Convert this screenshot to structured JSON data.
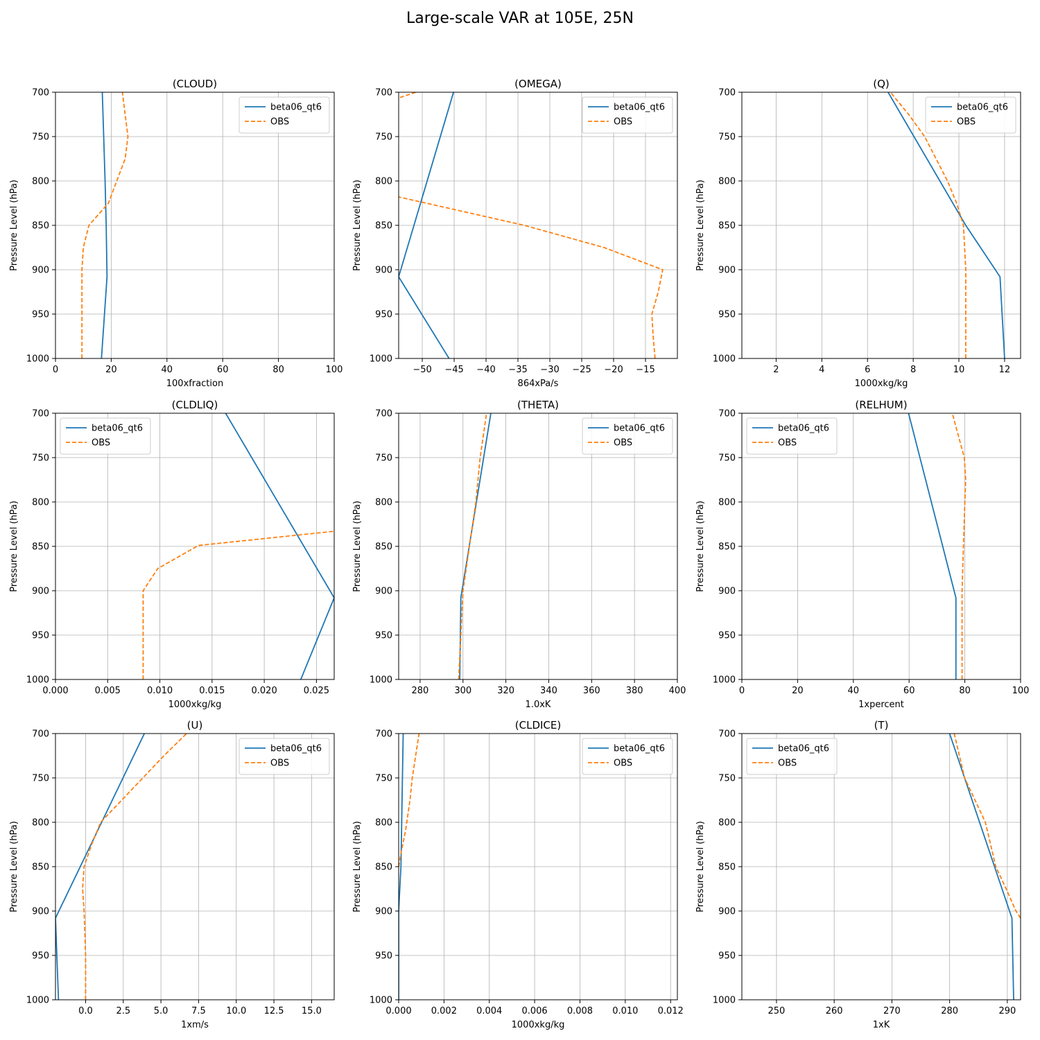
{
  "figure_title": "Large-scale VAR at 105E, 25N",
  "y_label": "Pressure Level (hPa)",
  "y_ticks": [
    700,
    750,
    800,
    850,
    900,
    950,
    1000
  ],
  "colors": {
    "model": "#1f77b4",
    "obs": "#ff7f0e",
    "grid": "#b0b0b0"
  },
  "legend_labels": [
    "beta06_qt6",
    "OBS"
  ],
  "chart_data": [
    {
      "type": "line",
      "title": "(CLOUD)",
      "xlabel": "100xfraction",
      "xlim": [
        0,
        100
      ],
      "ylim": [
        1000,
        700
      ],
      "y_inverted": true,
      "xticks": [
        0,
        20,
        40,
        60,
        80,
        100
      ],
      "xtick_labels": [
        "0",
        "20",
        "40",
        "60",
        "80",
        "100"
      ],
      "legend_position": "upper-right",
      "grid": true,
      "series": [
        {
          "name": "beta06_qt6",
          "style": "solid",
          "color": "#1f77b4",
          "x": [
            16.5,
            18.5,
            18.2,
            17.8,
            17.3,
            16.8
          ],
          "y": [
            1000,
            908,
            850,
            800,
            750,
            700
          ]
        },
        {
          "name": "OBS",
          "style": "dashed",
          "color": "#ff7f0e",
          "x": [
            9.5,
            9.5,
            10,
            12,
            19,
            22,
            25,
            26,
            24
          ],
          "y": [
            1000,
            900,
            875,
            850,
            825,
            800,
            775,
            750,
            700
          ]
        }
      ]
    },
    {
      "type": "line",
      "title": "(OMEGA)",
      "xlabel": "864xPa/s",
      "xlim": [
        -53.7,
        -10
      ],
      "ylim": [
        1000,
        700
      ],
      "y_inverted": true,
      "xticks": [
        -50,
        -45,
        -40,
        -35,
        -30,
        -25,
        -20,
        -15
      ],
      "xtick_labels": [
        "−50",
        "−45",
        "−40",
        "−35",
        "−30",
        "−25",
        "−20",
        "−15"
      ],
      "legend_position": "upper-right",
      "grid": true,
      "series": [
        {
          "name": "beta06_qt6",
          "style": "solid",
          "color": "#1f77b4",
          "x": [
            -45.8,
            -53.7,
            -45.1
          ],
          "y": [
            1000,
            908,
            700
          ]
        },
        {
          "name": "OBS",
          "style": "dashed",
          "color": "#ff7f0e",
          "x": [
            -13.5,
            -13.8,
            -14.0,
            -13.0,
            -12.3,
            -21.5,
            -34.0,
            -53.7,
            null,
            -53.5,
            -51.0
          ],
          "y": [
            1000,
            975,
            950,
            925,
            900,
            875,
            850,
            818,
            null,
            706,
            700
          ]
        }
      ]
    },
    {
      "type": "line",
      "title": "(Q)",
      "xlabel": "1000xkg/kg",
      "xlim": [
        0.5,
        12.7
      ],
      "ylim": [
        1000,
        700
      ],
      "y_inverted": true,
      "xticks": [
        2,
        4,
        6,
        8,
        10,
        12
      ],
      "xtick_labels": [
        "2",
        "4",
        "6",
        "8",
        "10",
        "12"
      ],
      "legend_position": "upper-right",
      "grid": true,
      "series": [
        {
          "name": "beta06_qt6",
          "style": "solid",
          "color": "#1f77b4",
          "x": [
            12.0,
            11.8,
            10.3,
            6.9
          ],
          "y": [
            1000,
            908,
            850,
            700
          ]
        },
        {
          "name": "OBS",
          "style": "dashed",
          "color": "#ff7f0e",
          "x": [
            10.3,
            10.3,
            10.2,
            9.9,
            9.5,
            9.0,
            8.5,
            7.8,
            7.0
          ],
          "y": [
            1000,
            900,
            850,
            825,
            800,
            775,
            750,
            725,
            700
          ]
        }
      ]
    },
    {
      "type": "line",
      "title": "(CLDLIQ)",
      "xlabel": "1000xkg/kg",
      "xlim": [
        0,
        0.0267
      ],
      "ylim": [
        1000,
        700
      ],
      "y_inverted": true,
      "xticks": [
        0,
        0.005,
        0.01,
        0.015,
        0.02,
        0.025
      ],
      "xtick_labels": [
        "0.000",
        "0.005",
        "0.010",
        "0.015",
        "0.020",
        "0.025"
      ],
      "legend_position": "upper-left",
      "grid": true,
      "series": [
        {
          "name": "beta06_qt6",
          "style": "solid",
          "color": "#1f77b4",
          "x": [
            0.0235,
            0.0267,
            0.0163
          ],
          "y": [
            1000,
            908,
            700
          ]
        },
        {
          "name": "OBS",
          "style": "dashed",
          "color": "#ff7f0e",
          "x": [
            0.0084,
            0.0084,
            0.0098,
            0.0137,
            0.0267
          ],
          "y": [
            1000,
            900,
            875,
            849,
            833
          ]
        }
      ]
    },
    {
      "type": "line",
      "title": "(THETA)",
      "xlabel": "1.0xK",
      "xlim": [
        270,
        400
      ],
      "ylim": [
        1000,
        700
      ],
      "y_inverted": true,
      "xticks": [
        280,
        300,
        320,
        340,
        360,
        380,
        400
      ],
      "xtick_labels": [
        "280",
        "300",
        "320",
        "340",
        "360",
        "380",
        "400"
      ],
      "legend_position": "upper-right",
      "grid": true,
      "series": [
        {
          "name": "beta06_qt6",
          "style": "solid",
          "color": "#1f77b4",
          "x": [
            298.5,
            299,
            313
          ],
          "y": [
            1000,
            908,
            700
          ]
        },
        {
          "name": "OBS",
          "style": "dashed",
          "color": "#ff7f0e",
          "x": [
            298,
            299,
            300,
            303,
            306,
            308,
            311
          ],
          "y": [
            1000,
            950,
            900,
            850,
            800,
            750,
            700
          ]
        }
      ]
    },
    {
      "type": "line",
      "title": "(RELHUM)",
      "xlabel": "1xpercent",
      "xlim": [
        0,
        100
      ],
      "ylim": [
        1000,
        700
      ],
      "y_inverted": true,
      "xticks": [
        0,
        20,
        40,
        60,
        80,
        100
      ],
      "xtick_labels": [
        "0",
        "20",
        "40",
        "60",
        "80",
        "100"
      ],
      "legend_position": "upper-left",
      "grid": true,
      "series": [
        {
          "name": "beta06_qt6",
          "style": "solid",
          "color": "#1f77b4",
          "x": [
            76.8,
            76.8,
            59.8
          ],
          "y": [
            1000,
            908,
            700
          ]
        },
        {
          "name": "OBS",
          "style": "dashed",
          "color": "#ff7f0e",
          "x": [
            79,
            79,
            79.5,
            80,
            80.3,
            79.8,
            75.5
          ],
          "y": [
            1000,
            900,
            850,
            800,
            775,
            750,
            700
          ]
        }
      ]
    },
    {
      "type": "line",
      "title": "(U)",
      "xlabel": "1xm/s",
      "xlim": [
        -2,
        16.5
      ],
      "ylim": [
        1000,
        700
      ],
      "y_inverted": true,
      "xticks": [
        0,
        2.5,
        5,
        7.5,
        10,
        12.5,
        15
      ],
      "xtick_labels": [
        "0.0",
        "2.5",
        "5.0",
        "7.5",
        "10.0",
        "12.5",
        "15.0"
      ],
      "legend_position": "upper-right",
      "grid": true,
      "series": [
        {
          "name": "beta06_qt6",
          "style": "solid",
          "color": "#1f77b4",
          "x": [
            -1.8,
            -2,
            3.9
          ],
          "y": [
            1000,
            908,
            700
          ]
        },
        {
          "name": "OBS",
          "style": "dashed",
          "color": "#ff7f0e",
          "x": [
            0,
            0,
            -0.1,
            -0.2,
            -0.1,
            0.4,
            1.0,
            2.4,
            3.8,
            5.2,
            6.7
          ],
          "y": [
            1000,
            950,
            900,
            875,
            850,
            825,
            800,
            775,
            750,
            725,
            700
          ]
        }
      ]
    },
    {
      "type": "line",
      "title": "(CLDICE)",
      "xlabel": "1000xkg/kg",
      "xlim": [
        0,
        0.0123
      ],
      "ylim": [
        1000,
        700
      ],
      "y_inverted": true,
      "xticks": [
        0,
        0.002,
        0.004,
        0.006,
        0.008,
        0.01,
        0.012
      ],
      "xtick_labels": [
        "0.000",
        "0.002",
        "0.004",
        "0.006",
        "0.008",
        "0.010",
        "0.012"
      ],
      "legend_position": "upper-right",
      "grid": true,
      "series": [
        {
          "name": "beta06_qt6",
          "style": "solid",
          "color": "#1f77b4",
          "x": [
            0,
            0,
            0.0001,
            0.0002
          ],
          "y": [
            1000,
            900,
            850,
            700
          ]
        },
        {
          "name": "OBS",
          "style": "dashed",
          "color": "#ff7f0e",
          "x": [
            0,
            0.0001,
            0.0003,
            0.0005,
            0.0006,
            0.0009
          ],
          "y": [
            850,
            835,
            810,
            775,
            750,
            700
          ]
        }
      ]
    },
    {
      "type": "line",
      "title": "(T)",
      "xlabel": "1xK",
      "xlim": [
        244,
        292.3
      ],
      "ylim": [
        1000,
        700
      ],
      "y_inverted": true,
      "xticks": [
        250,
        260,
        270,
        280,
        290
      ],
      "xtick_labels": [
        "250",
        "260",
        "270",
        "280",
        "290"
      ],
      "legend_position": "upper-left",
      "grid": true,
      "series": [
        {
          "name": "beta06_qt6",
          "style": "solid",
          "color": "#1f77b4",
          "x": [
            291.1,
            290.8,
            280
          ],
          "y": [
            1000,
            908,
            700
          ]
        },
        {
          "name": "OBS",
          "style": "dashed",
          "color": "#ff7f0e",
          "x": [
            292.3,
            291.5,
            289.8,
            288.0,
            286.2,
            284.4,
            282.6,
            280.8
          ],
          "y": [
            908,
            900,
            875,
            850,
            800,
            775,
            750,
            700
          ]
        }
      ]
    }
  ]
}
